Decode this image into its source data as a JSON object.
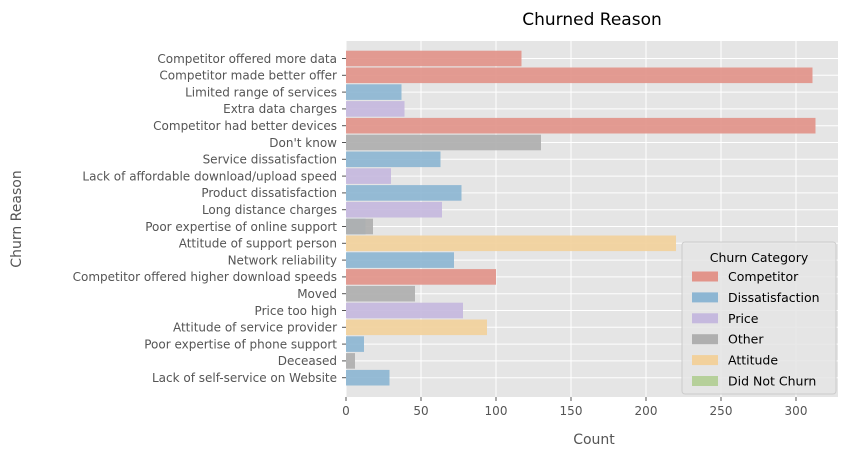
{
  "chart_data": {
    "type": "bar",
    "orientation": "horizontal",
    "title": "Churned Reason",
    "xlabel": "Count",
    "ylabel": "Churn Reason",
    "xlim": [
      0,
      328
    ],
    "xticks": [
      0,
      50,
      100,
      150,
      200,
      250,
      300
    ],
    "grid": true,
    "style": "ggplot",
    "legend": {
      "title": "Churn Category",
      "placement": "lower-right",
      "entries": [
        {
          "name": "Competitor",
          "color": "#e2948a"
        },
        {
          "name": "Dissatisfaction",
          "color": "#8db6d3"
        },
        {
          "name": "Price",
          "color": "#c5b9de"
        },
        {
          "name": "Other",
          "color": "#afafaf"
        },
        {
          "name": "Attitude",
          "color": "#f2d19c"
        },
        {
          "name": "Did Not Churn",
          "color": "#b6d09a"
        }
      ]
    },
    "categories": [
      "Competitor offered more data",
      "Competitor made better offer",
      "Limited range of services",
      "Extra data charges",
      "Competitor had better devices",
      "Don't know",
      "Service dissatisfaction",
      "Lack of affordable download/upload speed",
      "Product dissatisfaction",
      "Long distance charges",
      "Poor expertise of online support",
      "Attitude of support person",
      "Network reliability",
      "Competitor offered higher download speeds",
      "Moved",
      "Price too high",
      "Attitude of service provider",
      "Poor expertise of phone support",
      "Deceased",
      "Lack of self-service on Website"
    ],
    "series": [
      {
        "name": "Competitor",
        "values": [
          117,
          311,
          0,
          0,
          313,
          0,
          0,
          0,
          0,
          0,
          0,
          0,
          0,
          100,
          0,
          0,
          0,
          0,
          0,
          0
        ]
      },
      {
        "name": "Dissatisfaction",
        "values": [
          0,
          0,
          37,
          0,
          0,
          0,
          63,
          0,
          77,
          0,
          13,
          0,
          72,
          0,
          0,
          0,
          0,
          12,
          0,
          29
        ]
      },
      {
        "name": "Price",
        "values": [
          0,
          0,
          0,
          39,
          0,
          0,
          0,
          30,
          0,
          64,
          0,
          0,
          0,
          0,
          0,
          78,
          0,
          0,
          0,
          0
        ]
      },
      {
        "name": "Other",
        "values": [
          0,
          0,
          0,
          0,
          0,
          130,
          0,
          0,
          0,
          0,
          18,
          0,
          0,
          0,
          46,
          0,
          0,
          0,
          6,
          0
        ]
      },
      {
        "name": "Attitude",
        "values": [
          0,
          0,
          0,
          0,
          0,
          0,
          0,
          0,
          0,
          0,
          0,
          220,
          0,
          0,
          0,
          0,
          94,
          0,
          0,
          0
        ]
      },
      {
        "name": "Did Not Churn",
        "values": [
          0,
          0,
          0,
          0,
          0,
          0,
          0,
          0,
          0,
          0,
          0,
          0,
          0,
          0,
          0,
          0,
          0,
          0,
          0,
          0
        ]
      }
    ]
  }
}
